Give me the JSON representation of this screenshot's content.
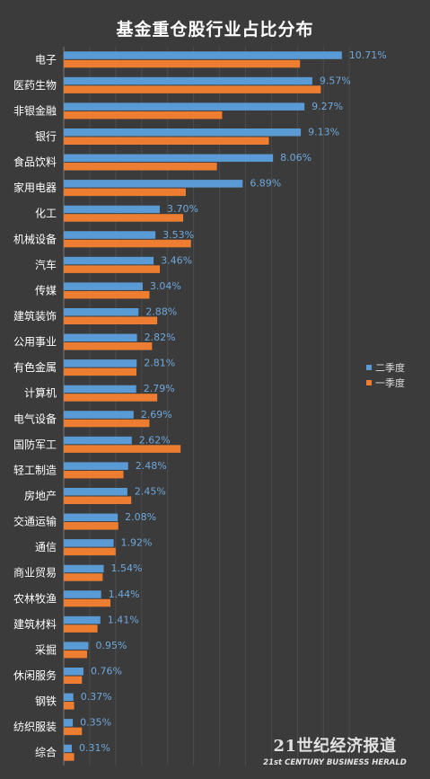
{
  "chart_data": {
    "type": "bar",
    "orientation": "horizontal",
    "title": "基金重仓股行业占比分布",
    "categories": [
      "电子",
      "医药生物",
      "非银金融",
      "银行",
      "食品饮料",
      "家用电器",
      "化工",
      "机械设备",
      "汽车",
      "传媒",
      "建筑装饰",
      "公用事业",
      "有色金属",
      "计算机",
      "电气设备",
      "国防军工",
      "轻工制造",
      "房地产",
      "交通运输",
      "通信",
      "商业贸易",
      "农林牧渔",
      "建筑材料",
      "采掘",
      "休闲服务",
      "钢铁",
      "纺织服装",
      "综合"
    ],
    "series": [
      {
        "name": "二季度",
        "color": "#5b9bd5",
        "values": [
          10.71,
          9.57,
          9.27,
          9.13,
          8.06,
          6.89,
          3.7,
          3.53,
          3.46,
          3.04,
          2.88,
          2.82,
          2.81,
          2.79,
          2.69,
          2.62,
          2.48,
          2.45,
          2.08,
          1.92,
          1.54,
          1.44,
          1.41,
          0.95,
          0.76,
          0.37,
          0.35,
          0.31
        ],
        "labels": [
          "10.71%",
          "9.57%",
          "9.27%",
          "9.13%",
          "8.06%",
          "6.89%",
          "3.70%",
          "3.53%",
          "3.46%",
          "3.04%",
          "2.88%",
          "2.82%",
          "2.81%",
          "2.79%",
          "2.69%",
          "2.62%",
          "2.48%",
          "2.45%",
          "2.08%",
          "1.92%",
          "1.54%",
          "1.44%",
          "1.41%",
          "0.95%",
          "0.76%",
          "0.37%",
          "0.35%",
          "0.31%"
        ]
      },
      {
        "name": "一季度",
        "color": "#ed7d31",
        "values": [
          9.1,
          9.9,
          6.1,
          7.9,
          5.9,
          4.7,
          4.6,
          4.9,
          3.7,
          3.3,
          3.6,
          3.4,
          2.8,
          3.6,
          3.3,
          4.5,
          2.3,
          2.6,
          2.1,
          2.0,
          1.5,
          1.8,
          1.3,
          0.9,
          0.7,
          0.4,
          0.7,
          0.4
        ]
      }
    ],
    "xlim": [
      0,
      11.2
    ],
    "grid": true,
    "legend": "right",
    "data_label_color": "#6fa8dc",
    "category_label_color": "#ffffff"
  },
  "watermark": {
    "main": "21世纪经济报道",
    "sub": "21st CENTURY BUSINESS HERALD"
  }
}
